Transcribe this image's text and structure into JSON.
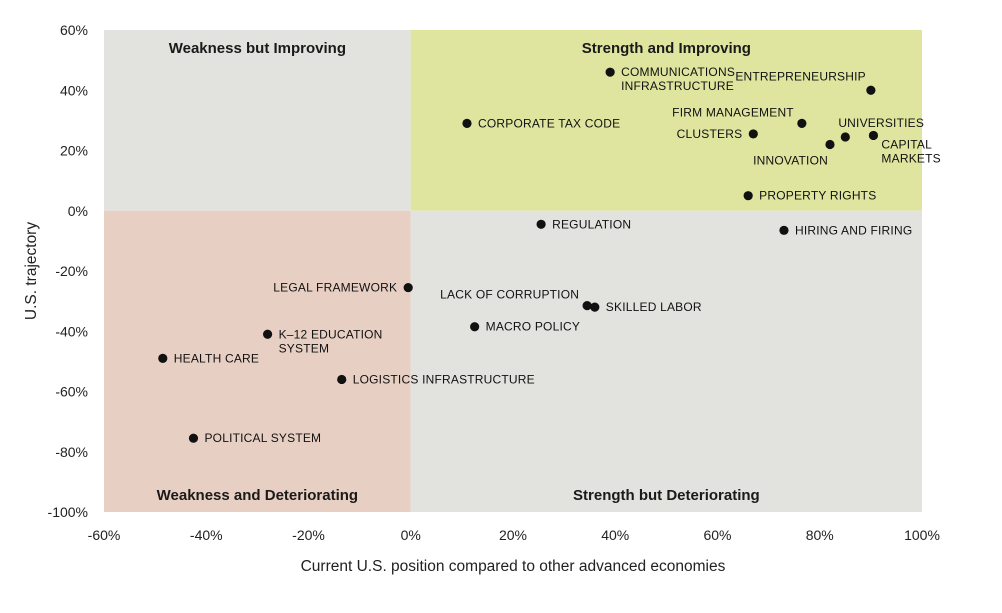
{
  "chart_data": {
    "type": "scatter",
    "xlabel": "Current U.S. position compared to other advanced economies",
    "ylabel": "U.S. trajectory",
    "xlim": [
      -60,
      100
    ],
    "ylim": [
      -100,
      60
    ],
    "x_ticks": [
      -60,
      -40,
      -20,
      0,
      20,
      40,
      60,
      80,
      100
    ],
    "y_ticks": [
      60,
      40,
      20,
      0,
      -20,
      -40,
      -60,
      -80,
      -100
    ],
    "tick_format": "percent",
    "grid": false,
    "legend": "none",
    "quadrants": [
      {
        "key": "tl",
        "label": "Weakness but Improving",
        "x": [
          -60,
          0
        ],
        "y": [
          0,
          60
        ],
        "color": "#e2e2de",
        "label_pos": "top"
      },
      {
        "key": "tr",
        "label": "Strength and Improving",
        "x": [
          0,
          100
        ],
        "y": [
          0,
          60
        ],
        "color": "#dfe59e",
        "label_pos": "top"
      },
      {
        "key": "bl",
        "label": "Weakness and Deteriorating",
        "x": [
          -60,
          0
        ],
        "y": [
          -100,
          0
        ],
        "color": "#e8cfc3",
        "label_pos": "bottom"
      },
      {
        "key": "br",
        "label": "Strength but Deteriorating",
        "x": [
          0,
          100
        ],
        "y": [
          -100,
          0
        ],
        "color": "#e2e2de",
        "label_pos": "bottom"
      }
    ],
    "points": [
      {
        "name": "COMMUNICATIONS INFRASTRUCTURE",
        "lines": [
          "COMMUNICATIONS",
          "INFRASTRUCTURE"
        ],
        "x": 39,
        "y": 46,
        "label_side": "right"
      },
      {
        "name": "ENTREPRENEURSHIP",
        "lines": [
          "ENTREPRENEURSHIP"
        ],
        "x": 90,
        "y": 40,
        "label_side": "above-left"
      },
      {
        "name": "CORPORATE TAX CODE",
        "lines": [
          "CORPORATE TAX CODE"
        ],
        "x": 11,
        "y": 29,
        "label_side": "right"
      },
      {
        "name": "FIRM MANAGEMENT",
        "lines": [
          "FIRM MANAGEMENT"
        ],
        "x": 76.5,
        "y": 29,
        "label_side": "left-above"
      },
      {
        "name": "UNIVERSITIES",
        "lines": [
          "UNIVERSITIES"
        ],
        "x": 85,
        "y": 24.5,
        "label_side": "above"
      },
      {
        "name": "CLUSTERS",
        "lines": [
          "CLUSTERS"
        ],
        "x": 67,
        "y": 25.5,
        "label_side": "left"
      },
      {
        "name": "CAPITAL MARKETS",
        "lines": [
          "CAPITAL",
          "MARKETS"
        ],
        "x": 90.5,
        "y": 25,
        "label_side": "right-below"
      },
      {
        "name": "INNOVATION",
        "lines": [
          "INNOVATION"
        ],
        "x": 82,
        "y": 22,
        "label_side": "below-left"
      },
      {
        "name": "PROPERTY RIGHTS",
        "lines": [
          "PROPERTY RIGHTS"
        ],
        "x": 66,
        "y": 5,
        "label_side": "right"
      },
      {
        "name": "REGULATION",
        "lines": [
          "REGULATION"
        ],
        "x": 25.5,
        "y": -4.5,
        "label_side": "right"
      },
      {
        "name": "HIRING AND FIRING",
        "lines": [
          "HIRING AND FIRING"
        ],
        "x": 73,
        "y": -6.5,
        "label_side": "right"
      },
      {
        "name": "LEGAL FRAMEWORK",
        "lines": [
          "LEGAL FRAMEWORK"
        ],
        "x": -0.5,
        "y": -25.5,
        "label_side": "left"
      },
      {
        "name": "LACK OF CORRUPTION",
        "lines": [
          "LACK OF CORRUPTION"
        ],
        "x": 34.5,
        "y": -31.5,
        "label_side": "left-above"
      },
      {
        "name": "SKILLED LABOR",
        "lines": [
          "SKILLED LABOR"
        ],
        "x": 36,
        "y": -32,
        "label_side": "right"
      },
      {
        "name": "MACRO POLICY",
        "lines": [
          "MACRO POLICY"
        ],
        "x": 12.5,
        "y": -38.5,
        "label_side": "right"
      },
      {
        "name": "K–12 EDUCATION SYSTEM",
        "lines": [
          "K–12 EDUCATION",
          "SYSTEM"
        ],
        "x": -28,
        "y": -41,
        "label_side": "right"
      },
      {
        "name": "HEALTH CARE",
        "lines": [
          "HEALTH CARE"
        ],
        "x": -48.5,
        "y": -49,
        "label_side": "right"
      },
      {
        "name": "LOGISTICS INFRASTRUCTURE",
        "lines": [
          "LOGISTICS INFRASTRUCTURE"
        ],
        "x": -13.5,
        "y": -56,
        "label_side": "right"
      },
      {
        "name": "POLITICAL SYSTEM",
        "lines": [
          "POLITICAL SYSTEM"
        ],
        "x": -42.5,
        "y": -75.5,
        "label_side": "right"
      }
    ]
  }
}
